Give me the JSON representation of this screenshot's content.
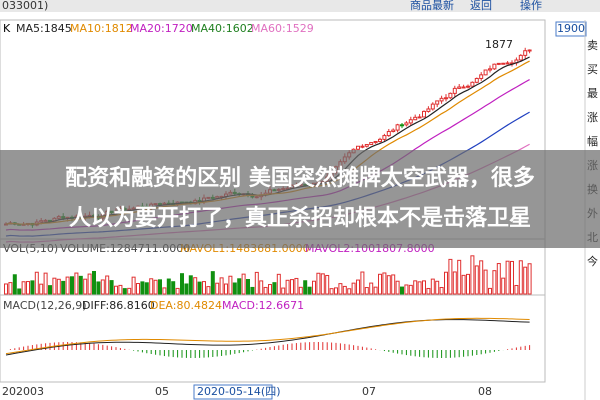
{
  "toolbar": {
    "code": "033001)",
    "menu": [
      "商品最新",
      "返回",
      "操作"
    ],
    "price_box": "1900"
  },
  "main_panel": {
    "label": "K",
    "indicators": [
      "MA5:1845",
      "MA10:1812",
      "MA20:1720",
      "MA40:1602",
      "MA60:1529"
    ],
    "peak_label": "1877"
  },
  "side_panel": [
    "卖",
    "买",
    "最",
    "涨",
    "幅",
    "涨",
    "换",
    "外",
    "北",
    "今"
  ],
  "headline": [
    "配资和融资的区别 美国突然摊牌太空武器，很多",
    "人以为要开打了，真正杀招却根本不是击落卫星"
  ],
  "volume_panel": {
    "indicators": [
      "VOL(5,10)",
      "VOLUME:1284711.0000",
      "MAVOL1:1483681.0000",
      "MAVOL2:1001807.8000"
    ]
  },
  "macd_panel": {
    "indicators": [
      "MACD(12,26,9)",
      "DIFF:86.8160",
      "DEA:80.4824",
      "MACD:12.6671"
    ]
  },
  "x_axis": {
    "labels": [
      "202003",
      "05",
      "2020-05-14(四)",
      "07",
      "08"
    ]
  }
}
